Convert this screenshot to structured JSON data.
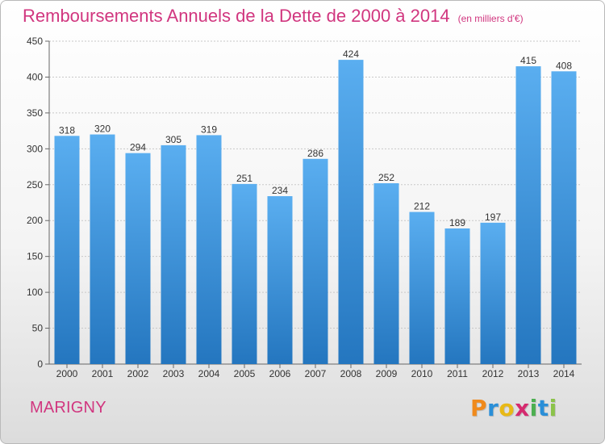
{
  "chart_data": {
    "type": "bar",
    "title": "Remboursements Annuels de la Dette de 2000 à 2014",
    "subtitle": "(en milliers d'€)",
    "categories": [
      "2000",
      "2001",
      "2002",
      "2003",
      "2004",
      "2005",
      "2006",
      "2007",
      "2008",
      "2009",
      "2010",
      "2011",
      "2012",
      "2013",
      "2014"
    ],
    "values": [
      318,
      320,
      294,
      305,
      319,
      251,
      234,
      286,
      424,
      252,
      212,
      189,
      197,
      415,
      408
    ],
    "ylim": [
      0,
      450
    ],
    "yticks": [
      0,
      50,
      100,
      150,
      200,
      250,
      300,
      350,
      400,
      450
    ],
    "grid": true,
    "bar_color": "#3b8fd6"
  },
  "footer": {
    "commune": "MARIGNY",
    "brand_letters": [
      "P",
      "r",
      "o",
      "x",
      "i",
      "t",
      "i"
    ],
    "brand_colors": [
      "#f08a1c",
      "#2a8fd8",
      "#e8b916",
      "#d52a6f",
      "#4caf50",
      "#2a8fd8",
      "#8bc34a"
    ]
  }
}
